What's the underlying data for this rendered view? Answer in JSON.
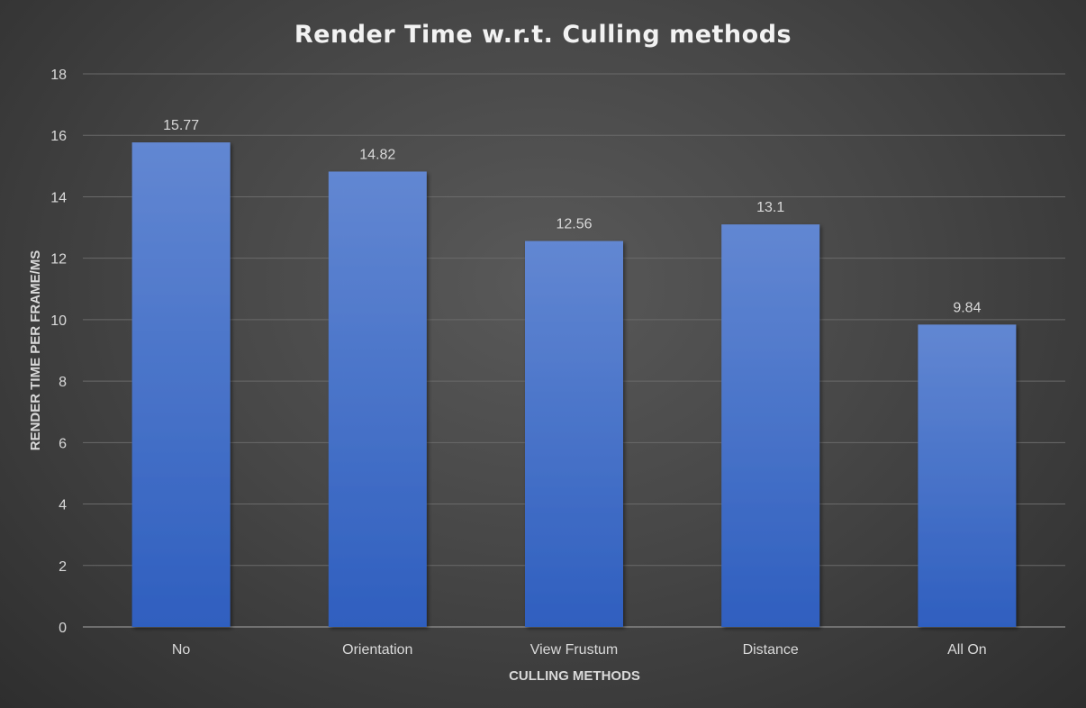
{
  "chart_data": {
    "type": "bar",
    "title": "Render Time w.r.t. Culling methods",
    "xlabel": "CULLING METHODS",
    "ylabel": "RENDER TIME PER FRAME/MS",
    "categories": [
      "No",
      "Orientation",
      "View Frustum",
      "Distance",
      "All On"
    ],
    "values": [
      15.77,
      14.82,
      12.56,
      13.1,
      9.84
    ],
    "data_labels": [
      "15.77",
      "14.82",
      "12.56",
      "13.1",
      "9.84"
    ],
    "ylim": [
      0,
      18
    ],
    "yticks": [
      0,
      2,
      4,
      6,
      8,
      10,
      12,
      14,
      16,
      18
    ],
    "grid": true,
    "legend": "none",
    "colors": {
      "bar_top": "#6287d2",
      "bar_bottom": "#2f5fbf"
    }
  }
}
